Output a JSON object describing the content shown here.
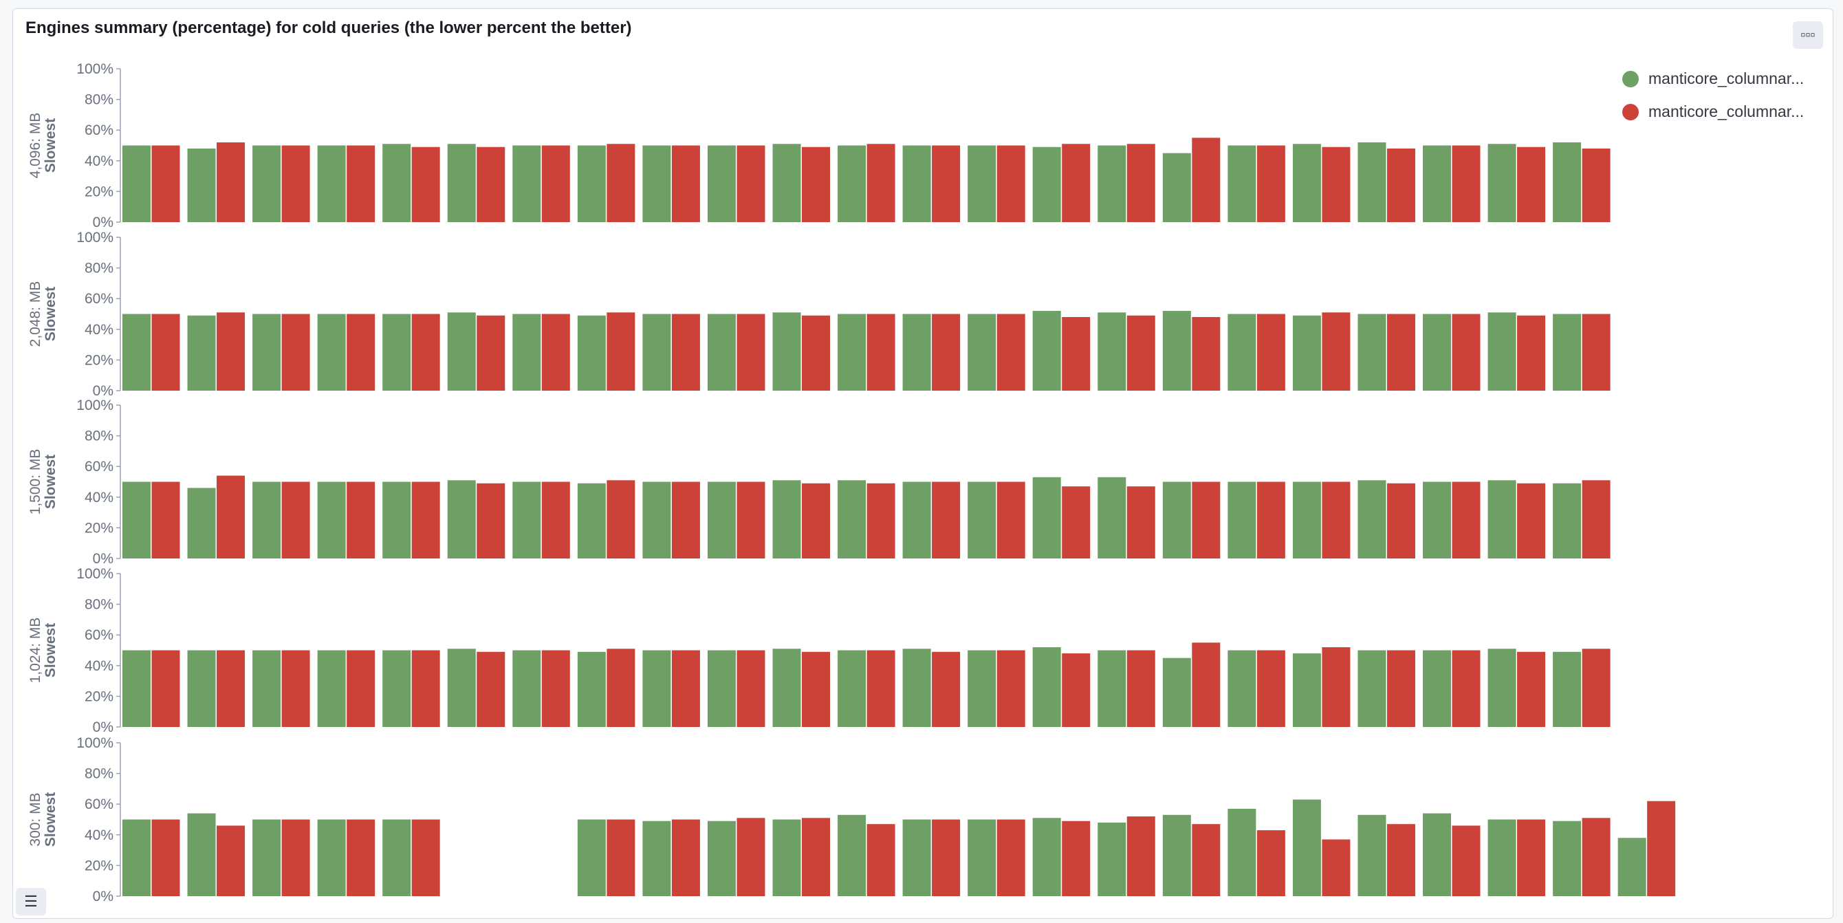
{
  "panel": {
    "title": "Engines summary (percentage) for cold queries (the lower percent the better)",
    "menu_icon": "options-icon",
    "legend_toggle_icon": "list-icon"
  },
  "legend": [
    {
      "label": "manticore_columnar...",
      "color": "#6e9f64"
    },
    {
      "label": "manticore_columnar...",
      "color": "#cc4238"
    }
  ],
  "chart_data": [
    {
      "type": "bar",
      "ylabel": [
        "4,096: MB",
        "Slowest"
      ],
      "yticks": [
        "100%",
        "80%",
        "60%",
        "40%",
        "20%",
        "0%"
      ],
      "ylim": [
        0,
        100
      ],
      "series": [
        {
          "values": [
            50,
            48,
            50,
            50,
            51,
            51,
            50,
            50,
            50,
            50,
            51,
            50,
            50,
            50,
            49,
            50,
            45,
            50,
            51,
            52,
            50,
            51,
            52
          ]
        },
        {
          "values": [
            50,
            52,
            50,
            50,
            49,
            49,
            50,
            51,
            50,
            50,
            49,
            51,
            50,
            50,
            51,
            51,
            55,
            50,
            49,
            48,
            50,
            49,
            48
          ]
        }
      ]
    },
    {
      "type": "bar",
      "ylabel": [
        "2,048: MB",
        "Slowest"
      ],
      "yticks": [
        "100%",
        "80%",
        "60%",
        "40%",
        "20%",
        "0%"
      ],
      "ylim": [
        0,
        100
      ],
      "series": [
        {
          "values": [
            50,
            49,
            50,
            50,
            50,
            51,
            50,
            49,
            50,
            50,
            51,
            50,
            50,
            50,
            52,
            51,
            52,
            50,
            49,
            50,
            50,
            51,
            50
          ]
        },
        {
          "values": [
            50,
            51,
            50,
            50,
            50,
            49,
            50,
            51,
            50,
            50,
            49,
            50,
            50,
            50,
            48,
            49,
            48,
            50,
            51,
            50,
            50,
            49,
            50
          ]
        }
      ]
    },
    {
      "type": "bar",
      "ylabel": [
        "1,500: MB",
        "Slowest"
      ],
      "yticks": [
        "100%",
        "80%",
        "60%",
        "40%",
        "20%",
        "0%"
      ],
      "ylim": [
        0,
        100
      ],
      "series": [
        {
          "values": [
            50,
            46,
            50,
            50,
            50,
            51,
            50,
            49,
            50,
            50,
            51,
            51,
            50,
            50,
            53,
            53,
            50,
            50,
            50,
            51,
            50,
            51,
            49
          ]
        },
        {
          "values": [
            50,
            54,
            50,
            50,
            50,
            49,
            50,
            51,
            50,
            50,
            49,
            49,
            50,
            50,
            47,
            47,
            50,
            50,
            50,
            49,
            50,
            49,
            51
          ]
        }
      ]
    },
    {
      "type": "bar",
      "ylabel": [
        "1,024: MB",
        "Slowest"
      ],
      "yticks": [
        "100%",
        "80%",
        "60%",
        "40%",
        "20%",
        "0%"
      ],
      "ylim": [
        0,
        100
      ],
      "series": [
        {
          "values": [
            50,
            50,
            50,
            50,
            50,
            51,
            50,
            49,
            50,
            50,
            51,
            50,
            51,
            50,
            52,
            50,
            45,
            50,
            48,
            50,
            50,
            51,
            49
          ]
        },
        {
          "values": [
            50,
            50,
            50,
            50,
            50,
            49,
            50,
            51,
            50,
            50,
            49,
            50,
            49,
            50,
            48,
            50,
            55,
            50,
            52,
            50,
            50,
            49,
            51
          ]
        }
      ]
    },
    {
      "type": "bar",
      "ylabel": [
        "300: MB",
        "Slowest"
      ],
      "yticks": [
        "100%",
        "80%",
        "60%",
        "40%",
        "20%",
        "0%"
      ],
      "ylim": [
        0,
        100
      ],
      "series": [
        {
          "values": [
            50,
            54,
            50,
            50,
            50,
            null,
            null,
            50,
            49,
            49,
            50,
            53,
            50,
            50,
            51,
            48,
            53,
            57,
            63,
            53,
            54,
            50,
            49,
            38
          ]
        },
        {
          "values": [
            50,
            46,
            50,
            50,
            50,
            null,
            null,
            50,
            50,
            51,
            51,
            47,
            50,
            50,
            49,
            52,
            47,
            43,
            37,
            47,
            46,
            50,
            51,
            62
          ]
        }
      ]
    }
  ]
}
